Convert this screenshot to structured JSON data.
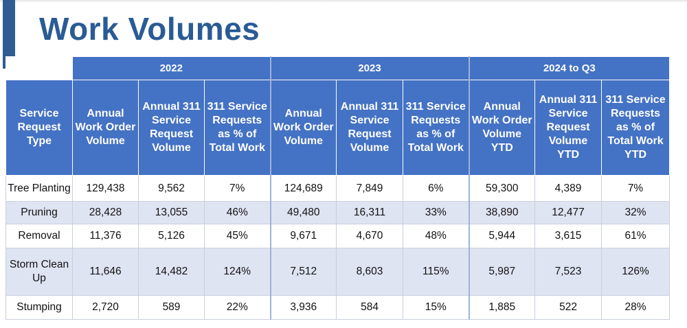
{
  "title": "Work Volumes",
  "years": [
    "2022",
    "2023",
    "2024 to Q3"
  ],
  "headers": {
    "type": "Service Request Type",
    "cols": [
      "Annual Work Order Volume",
      "Annual 311 Service Request Volume",
      "311 Service Requests as % of Total Work",
      "Annual Work Order Volume",
      "Annual 311 Service Request Volume",
      "311 Service Requests as % of Total Work",
      "Annual Work Order Volume YTD",
      "Annual 311 Service Request Volume YTD",
      "311 Service Requests as % of Total Work YTD"
    ]
  },
  "rows": [
    {
      "type": "Tree Planting",
      "cells": [
        "129,438",
        "9,562",
        "7%",
        "124,689",
        "7,849",
        "6%",
        "59,300",
        "4,389",
        "7%"
      ]
    },
    {
      "type": "Pruning",
      "cells": [
        "28,428",
        "13,055",
        "46%",
        "49,480",
        "16,311",
        "33%",
        "38,890",
        "12,477",
        "32%"
      ]
    },
    {
      "type": "Removal",
      "cells": [
        "11,376",
        "5,126",
        "45%",
        "9,671",
        "4,670",
        "48%",
        "5,944",
        "3,615",
        "61%"
      ]
    },
    {
      "type": "Storm Clean Up",
      "cells": [
        "11,646",
        "14,482",
        "124%",
        "7,512",
        "8,603",
        "115%",
        "5,987",
        "7,523",
        "126%"
      ]
    },
    {
      "type": "Stumping",
      "cells": [
        "2,720",
        "589",
        "22%",
        "3,936",
        "584",
        "15%",
        "1,885",
        "522",
        "28%"
      ]
    }
  ]
}
